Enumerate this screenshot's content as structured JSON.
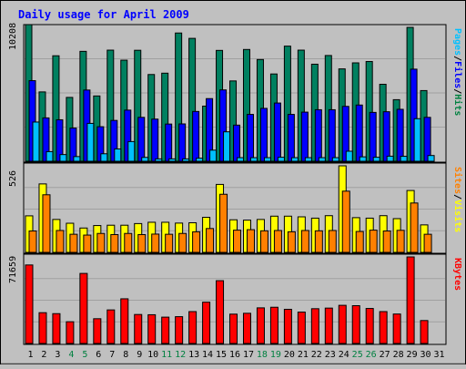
{
  "chart_data": [
    {
      "type": "bar",
      "title": "Daily usage for April 2009",
      "categories": [
        "1",
        "2",
        "3",
        "4",
        "5",
        "6",
        "7",
        "8",
        "9",
        "10",
        "11",
        "12",
        "13",
        "14",
        "15",
        "16",
        "17",
        "18",
        "19",
        "20",
        "21",
        "22",
        "23",
        "24",
        "25",
        "26",
        "27",
        "28",
        "29",
        "30",
        "31"
      ],
      "weekend_days": [
        4,
        5,
        11,
        12,
        18,
        19,
        25,
        26
      ],
      "ymax_label": "10208",
      "ylim": [
        0,
        10208
      ],
      "grid": true,
      "legend_text": [
        "Pages",
        "/",
        "Files",
        "/",
        "Hits"
      ],
      "legend_colors": [
        "#00c0ff",
        "#000000",
        "#0000ff",
        "#000000",
        "#008040"
      ],
      "series": [
        {
          "name": "Hits",
          "color": "#008060",
          "values": [
            10208,
            5180,
            7880,
            4770,
            8210,
            4880,
            8300,
            7550,
            8290,
            6480,
            6580,
            9580,
            9180,
            4120,
            8280,
            6000,
            8350,
            7600,
            6520,
            8600,
            8300,
            7250,
            7900,
            6900,
            7350,
            7450,
            5750,
            4600,
            10000,
            5280,
            null
          ]
        },
        {
          "name": "Files",
          "color": "#0000ff",
          "values": [
            6020,
            3240,
            3100,
            2480,
            5320,
            2580,
            3050,
            3820,
            3280,
            3150,
            2780,
            2790,
            3720,
            4680,
            5330,
            2700,
            3500,
            3950,
            4350,
            3500,
            3670,
            3850,
            3850,
            4100,
            4200,
            3650,
            3700,
            3880,
            6880,
            3280,
            null
          ]
        },
        {
          "name": "Pages",
          "color": "#00c0ff",
          "values": [
            2930,
            720,
            500,
            350,
            2830,
            560,
            920,
            1470,
            290,
            180,
            180,
            180,
            230,
            830,
            2200,
            270,
            270,
            270,
            300,
            270,
            270,
            270,
            270,
            750,
            330,
            300,
            380,
            370,
            3180,
            430,
            null
          ]
        }
      ]
    },
    {
      "type": "bar",
      "ymax_label": "526",
      "ylim": [
        0,
        526
      ],
      "grid": true,
      "legend_text": [
        "Sites",
        "/",
        "Visits"
      ],
      "legend_colors": [
        "#ff8000",
        "#000000",
        "#ffff00"
      ],
      "series": [
        {
          "name": "Visits",
          "color": "#ffff00",
          "values": [
            222,
            416,
            200,
            177,
            148,
            163,
            165,
            165,
            175,
            183,
            183,
            178,
            180,
            213,
            413,
            198,
            196,
            200,
            220,
            220,
            216,
            208,
            223,
            526,
            211,
            208,
            223,
            205,
            376,
            167,
            null
          ]
        },
        {
          "name": "Sites",
          "color": "#ff8000",
          "values": [
            130,
            350,
            133,
            110,
            105,
            115,
            108,
            115,
            108,
            111,
            110,
            115,
            125,
            145,
            353,
            135,
            138,
            131,
            133,
            125,
            133,
            131,
            133,
            372,
            127,
            135,
            130,
            134,
            300,
            110,
            null
          ]
        }
      ]
    },
    {
      "type": "bar",
      "ymax_label": "71659",
      "ylim": [
        0,
        71659
      ],
      "grid": true,
      "legend_text": [
        "KBytes"
      ],
      "legend_colors": [
        "#ff0000"
      ],
      "series": [
        {
          "name": "KBytes",
          "color": "#ff0000",
          "values": [
            65000,
            25500,
            24700,
            18000,
            58000,
            20500,
            27800,
            37000,
            24000,
            23800,
            21800,
            22200,
            26400,
            34200,
            52000,
            24300,
            25000,
            29500,
            30000,
            28300,
            26000,
            28800,
            29300,
            31600,
            31300,
            29000,
            26400,
            24400,
            71659,
            19000,
            null
          ]
        }
      ]
    }
  ]
}
